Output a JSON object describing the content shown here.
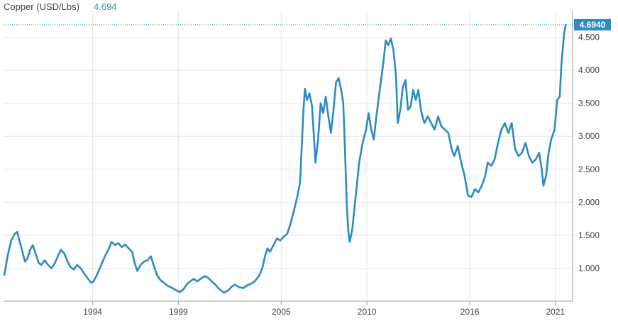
{
  "chart_data": {
    "type": "line",
    "title": "Copper (USD/Lbs)",
    "title_value": "4.694",
    "last_value_label": "4.6940",
    "xlabel": "",
    "ylabel": "",
    "xlim": [
      1988.8,
      2022.0
    ],
    "ylim": [
      0.5,
      4.85
    ],
    "x_ticks": [
      1994,
      1999,
      2005,
      2010,
      2016,
      2021
    ],
    "x_tick_labels": [
      "1994",
      "1999",
      "2005",
      "2010",
      "2016",
      "2021"
    ],
    "y_ticks": [
      1.0,
      1.5,
      2.0,
      2.5,
      3.0,
      3.5,
      4.0,
      4.5
    ],
    "y_tick_labels": [
      "1.000",
      "1.500",
      "2.000",
      "2.500",
      "3.000",
      "3.500",
      "4.000",
      "4.500"
    ],
    "grid": true,
    "legend": "none",
    "colors": {
      "line": "#2a8bc7",
      "grid": "#e6e6e6",
      "axis": "#9a9a9a",
      "title_value": "#2a9c9a",
      "last_value_bg": "#2a8bc7",
      "current_value_line": "#2a8bc7"
    },
    "series": [
      {
        "values": [
          [
            1988.85,
            0.9
          ],
          [
            1989.05,
            1.2
          ],
          [
            1989.25,
            1.42
          ],
          [
            1989.45,
            1.52
          ],
          [
            1989.6,
            1.55
          ],
          [
            1989.75,
            1.4
          ],
          [
            1989.9,
            1.25
          ],
          [
            1990.05,
            1.1
          ],
          [
            1990.2,
            1.15
          ],
          [
            1990.35,
            1.28
          ],
          [
            1990.5,
            1.35
          ],
          [
            1990.7,
            1.2
          ],
          [
            1990.85,
            1.08
          ],
          [
            1991.0,
            1.05
          ],
          [
            1991.2,
            1.12
          ],
          [
            1991.4,
            1.05
          ],
          [
            1991.6,
            1.0
          ],
          [
            1991.8,
            1.08
          ],
          [
            1992.0,
            1.2
          ],
          [
            1992.15,
            1.28
          ],
          [
            1992.35,
            1.22
          ],
          [
            1992.5,
            1.12
          ],
          [
            1992.7,
            1.02
          ],
          [
            1992.9,
            0.98
          ],
          [
            1993.1,
            1.05
          ],
          [
            1993.3,
            1.0
          ],
          [
            1993.5,
            0.92
          ],
          [
            1993.7,
            0.85
          ],
          [
            1993.9,
            0.78
          ],
          [
            1994.05,
            0.8
          ],
          [
            1994.25,
            0.9
          ],
          [
            1994.5,
            1.05
          ],
          [
            1994.75,
            1.2
          ],
          [
            1994.95,
            1.3
          ],
          [
            1995.1,
            1.4
          ],
          [
            1995.3,
            1.35
          ],
          [
            1995.5,
            1.38
          ],
          [
            1995.7,
            1.32
          ],
          [
            1995.9,
            1.36
          ],
          [
            1996.1,
            1.3
          ],
          [
            1996.3,
            1.25
          ],
          [
            1996.45,
            1.08
          ],
          [
            1996.6,
            0.96
          ],
          [
            1996.8,
            1.05
          ],
          [
            1997.0,
            1.1
          ],
          [
            1997.2,
            1.12
          ],
          [
            1997.4,
            1.18
          ],
          [
            1997.55,
            1.05
          ],
          [
            1997.75,
            0.9
          ],
          [
            1997.95,
            0.82
          ],
          [
            1998.15,
            0.78
          ],
          [
            1998.4,
            0.73
          ],
          [
            1998.65,
            0.7
          ],
          [
            1998.9,
            0.66
          ],
          [
            1999.1,
            0.64
          ],
          [
            1999.3,
            0.68
          ],
          [
            1999.5,
            0.76
          ],
          [
            1999.7,
            0.8
          ],
          [
            1999.9,
            0.84
          ],
          [
            2000.1,
            0.8
          ],
          [
            2000.3,
            0.84
          ],
          [
            2000.55,
            0.88
          ],
          [
            2000.75,
            0.85
          ],
          [
            2000.95,
            0.8
          ],
          [
            2001.2,
            0.74
          ],
          [
            2001.4,
            0.68
          ],
          [
            2001.65,
            0.63
          ],
          [
            2001.9,
            0.66
          ],
          [
            2002.1,
            0.72
          ],
          [
            2002.3,
            0.75
          ],
          [
            2002.55,
            0.71
          ],
          [
            2002.8,
            0.7
          ],
          [
            2003.0,
            0.74
          ],
          [
            2003.2,
            0.76
          ],
          [
            2003.45,
            0.8
          ],
          [
            2003.7,
            0.88
          ],
          [
            2003.9,
            1.0
          ],
          [
            2004.05,
            1.18
          ],
          [
            2004.2,
            1.3
          ],
          [
            2004.35,
            1.25
          ],
          [
            2004.55,
            1.35
          ],
          [
            2004.75,
            1.45
          ],
          [
            2004.95,
            1.42
          ],
          [
            2005.15,
            1.48
          ],
          [
            2005.35,
            1.52
          ],
          [
            2005.55,
            1.68
          ],
          [
            2005.75,
            1.88
          ],
          [
            2005.95,
            2.1
          ],
          [
            2006.1,
            2.3
          ],
          [
            2006.2,
            2.85
          ],
          [
            2006.3,
            3.4
          ],
          [
            2006.38,
            3.72
          ],
          [
            2006.5,
            3.55
          ],
          [
            2006.65,
            3.65
          ],
          [
            2006.8,
            3.45
          ],
          [
            2007.0,
            2.6
          ],
          [
            2007.15,
            2.95
          ],
          [
            2007.3,
            3.5
          ],
          [
            2007.45,
            3.35
          ],
          [
            2007.6,
            3.6
          ],
          [
            2007.75,
            3.3
          ],
          [
            2007.9,
            3.05
          ],
          [
            2008.05,
            3.4
          ],
          [
            2008.2,
            3.82
          ],
          [
            2008.35,
            3.88
          ],
          [
            2008.5,
            3.7
          ],
          [
            2008.62,
            3.5
          ],
          [
            2008.72,
            2.8
          ],
          [
            2008.82,
            2.0
          ],
          [
            2008.92,
            1.55
          ],
          [
            2009.0,
            1.4
          ],
          [
            2009.15,
            1.6
          ],
          [
            2009.35,
            2.1
          ],
          [
            2009.55,
            2.6
          ],
          [
            2009.75,
            2.9
          ],
          [
            2009.95,
            3.1
          ],
          [
            2010.1,
            3.35
          ],
          [
            2010.25,
            3.1
          ],
          [
            2010.4,
            2.95
          ],
          [
            2010.55,
            3.3
          ],
          [
            2010.75,
            3.7
          ],
          [
            2010.95,
            4.1
          ],
          [
            2011.1,
            4.45
          ],
          [
            2011.25,
            4.38
          ],
          [
            2011.4,
            4.48
          ],
          [
            2011.55,
            4.3
          ],
          [
            2011.7,
            3.9
          ],
          [
            2011.8,
            3.2
          ],
          [
            2011.95,
            3.4
          ],
          [
            2012.1,
            3.75
          ],
          [
            2012.25,
            3.85
          ],
          [
            2012.4,
            3.4
          ],
          [
            2012.55,
            3.45
          ],
          [
            2012.7,
            3.7
          ],
          [
            2012.85,
            3.55
          ],
          [
            2013.0,
            3.7
          ],
          [
            2013.15,
            3.4
          ],
          [
            2013.35,
            3.2
          ],
          [
            2013.55,
            3.3
          ],
          [
            2013.75,
            3.2
          ],
          [
            2013.95,
            3.1
          ],
          [
            2014.15,
            3.3
          ],
          [
            2014.35,
            3.15
          ],
          [
            2014.55,
            3.1
          ],
          [
            2014.75,
            3.05
          ],
          [
            2014.95,
            2.8
          ],
          [
            2015.1,
            2.7
          ],
          [
            2015.3,
            2.85
          ],
          [
            2015.5,
            2.6
          ],
          [
            2015.7,
            2.4
          ],
          [
            2015.9,
            2.1
          ],
          [
            2016.1,
            2.08
          ],
          [
            2016.3,
            2.2
          ],
          [
            2016.5,
            2.15
          ],
          [
            2016.7,
            2.25
          ],
          [
            2016.9,
            2.4
          ],
          [
            2017.05,
            2.6
          ],
          [
            2017.25,
            2.55
          ],
          [
            2017.45,
            2.65
          ],
          [
            2017.65,
            2.9
          ],
          [
            2017.85,
            3.1
          ],
          [
            2018.05,
            3.2
          ],
          [
            2018.25,
            3.05
          ],
          [
            2018.45,
            3.2
          ],
          [
            2018.65,
            2.8
          ],
          [
            2018.85,
            2.7
          ],
          [
            2019.05,
            2.75
          ],
          [
            2019.25,
            2.9
          ],
          [
            2019.45,
            2.7
          ],
          [
            2019.65,
            2.6
          ],
          [
            2019.85,
            2.65
          ],
          [
            2020.05,
            2.75
          ],
          [
            2020.2,
            2.5
          ],
          [
            2020.3,
            2.25
          ],
          [
            2020.45,
            2.4
          ],
          [
            2020.6,
            2.75
          ],
          [
            2020.75,
            2.95
          ],
          [
            2020.95,
            3.1
          ],
          [
            2021.1,
            3.55
          ],
          [
            2021.25,
            3.6
          ],
          [
            2021.35,
            4.1
          ],
          [
            2021.42,
            4.3
          ],
          [
            2021.5,
            4.55
          ],
          [
            2021.6,
            4.69
          ]
        ]
      }
    ]
  }
}
